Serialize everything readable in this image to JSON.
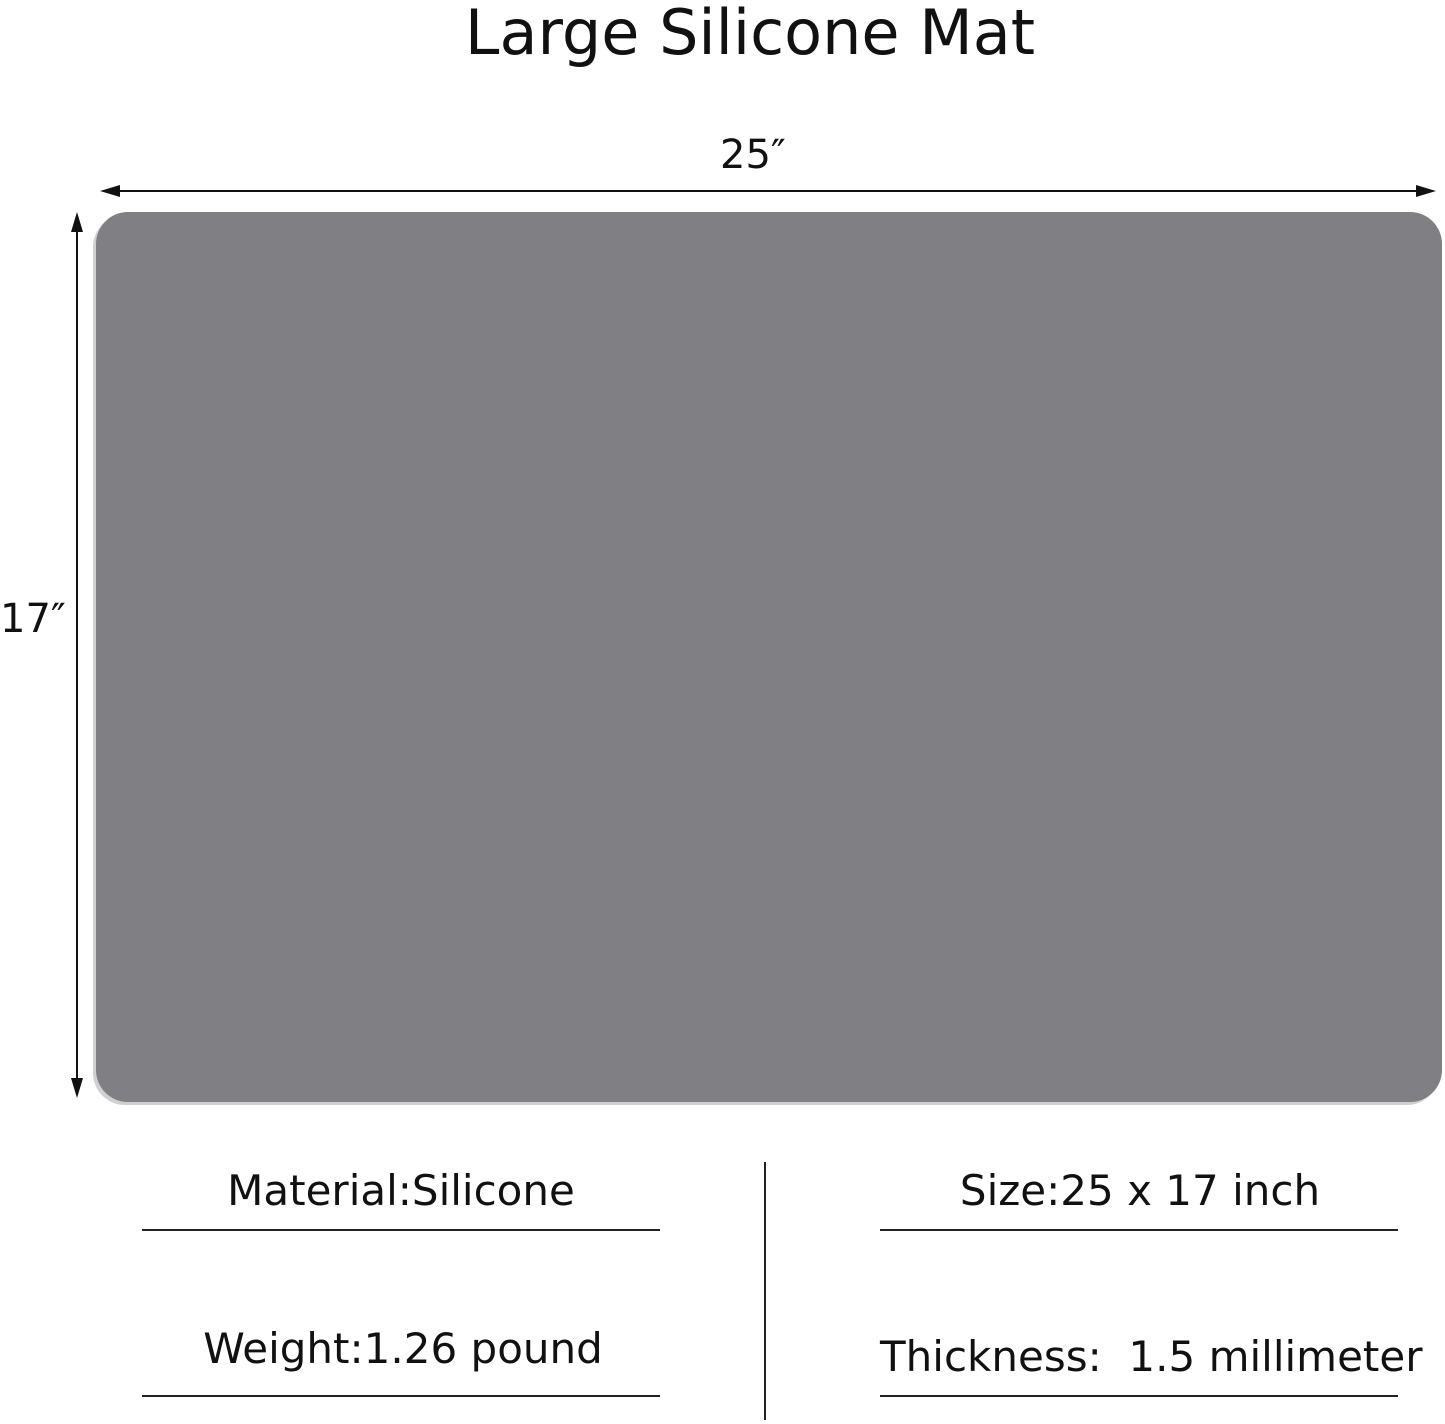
{
  "title": "Large Silicone Mat",
  "dimensions": {
    "width_label": "25″",
    "height_label": "17″"
  },
  "colors": {
    "mat": "#807f84",
    "text": "#111111"
  },
  "specs": [
    {
      "text": "Material:Silicone"
    },
    {
      "text": "Size:25 x 17 inch"
    },
    {
      "text": "Weight:1.26 pound"
    },
    {
      "text": "Thickness:  1.5 millimeter"
    }
  ]
}
